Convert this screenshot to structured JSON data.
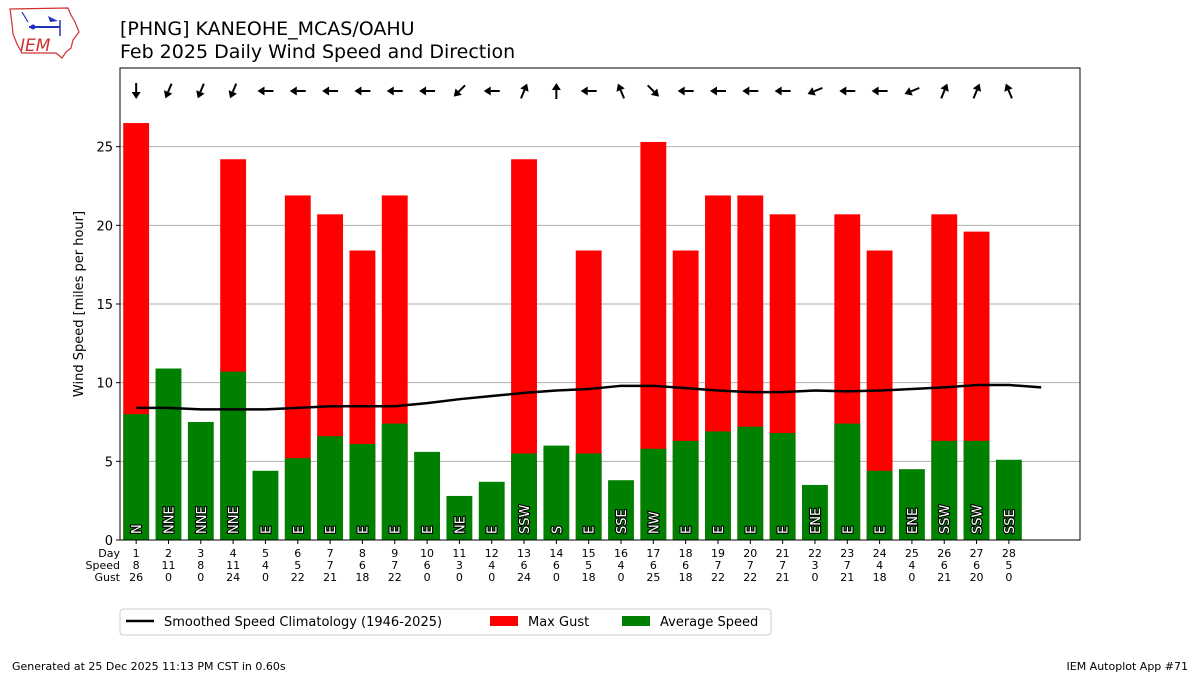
{
  "header": {
    "logo_text": "IEM",
    "title_line1": "[PHNG] KANEOHE_MCAS/OAHU",
    "title_line2": "Feb 2025 Daily Wind Speed and Direction"
  },
  "footer": {
    "generated": "Generated at 25 Dec 2025 11:13 PM CST in 0.60s",
    "app": "IEM Autoplot App #71"
  },
  "colors": {
    "gust": "#ff0000",
    "avg": "#008000",
    "clim": "#000000",
    "grid": "#b0b0b0",
    "logo": "#d03030"
  },
  "chart_data": {
    "type": "bar",
    "title": "[PHNG] KANEOHE_MCAS/OAHU",
    "subtitle": "Feb 2025 Daily Wind Speed and Direction",
    "ylabel": "Wind Speed [miles per hour]",
    "xlim": [
      0.5,
      30.2
    ],
    "ylim": [
      0,
      30
    ],
    "yticks": [
      0,
      5,
      10,
      15,
      20,
      25
    ],
    "grid": true,
    "row_labels": [
      "Day",
      "Speed",
      "Gust"
    ],
    "days": [
      1,
      2,
      3,
      4,
      5,
      6,
      7,
      8,
      9,
      10,
      11,
      12,
      13,
      14,
      15,
      16,
      17,
      18,
      19,
      20,
      21,
      22,
      23,
      24,
      25,
      26,
      27,
      28
    ],
    "speed_labels": [
      8,
      11,
      8,
      11,
      4,
      5,
      7,
      6,
      7,
      6,
      3,
      4,
      6,
      6,
      5,
      4,
      6,
      6,
      7,
      7,
      7,
      3,
      7,
      4,
      4,
      6,
      6,
      5
    ],
    "gust_labels": [
      26,
      0,
      0,
      24,
      0,
      22,
      21,
      18,
      22,
      0,
      0,
      0,
      24,
      0,
      18,
      0,
      25,
      18,
      22,
      22,
      21,
      0,
      21,
      18,
      0,
      21,
      20,
      0
    ],
    "series": [
      {
        "name": "Max Gust",
        "values": [
          26.5,
          0,
          0,
          24.2,
          0,
          21.9,
          20.7,
          18.4,
          21.9,
          0,
          0,
          0,
          24.2,
          0,
          18.4,
          0,
          25.3,
          18.4,
          21.9,
          21.9,
          20.7,
          0,
          20.7,
          18.4,
          0,
          20.7,
          19.6,
          0
        ]
      },
      {
        "name": "Average Speed",
        "values": [
          8.0,
          10.9,
          7.5,
          10.7,
          4.4,
          5.2,
          6.6,
          6.1,
          7.4,
          5.6,
          2.8,
          3.7,
          5.5,
          6.0,
          5.5,
          3.8,
          5.8,
          6.3,
          6.9,
          7.2,
          6.8,
          3.5,
          7.4,
          4.4,
          4.5,
          6.3,
          6.3,
          5.1
        ]
      },
      {
        "name": "Smoothed Speed Climatology (1946-2025)",
        "x": [
          1,
          2,
          3,
          4,
          5,
          6,
          7,
          8,
          9,
          10,
          11,
          12,
          13,
          14,
          15,
          16,
          17,
          18,
          19,
          20,
          21,
          22,
          23,
          24,
          25,
          26,
          27,
          28,
          29
        ],
        "values": [
          8.4,
          8.4,
          8.3,
          8.3,
          8.3,
          8.4,
          8.5,
          8.5,
          8.5,
          8.7,
          8.95,
          9.15,
          9.35,
          9.5,
          9.6,
          9.8,
          9.8,
          9.65,
          9.5,
          9.4,
          9.4,
          9.5,
          9.45,
          9.5,
          9.6,
          9.7,
          9.85,
          9.85,
          9.7
        ]
      }
    ],
    "directions": [
      "N",
      "NNE",
      "NNE",
      "NNE",
      "E",
      "E",
      "E",
      "E",
      "E",
      "E",
      "NE",
      "E",
      "SSW",
      "S",
      "E",
      "SSE",
      "NW",
      "E",
      "E",
      "E",
      "E",
      "ENE",
      "E",
      "E",
      "ENE",
      "SSW",
      "SSW",
      "SSE"
    ],
    "legend": {
      "placement": "bottom-left",
      "entries": [
        "Smoothed Speed Climatology (1946-2025)",
        "Max Gust",
        "Average Speed"
      ]
    }
  }
}
